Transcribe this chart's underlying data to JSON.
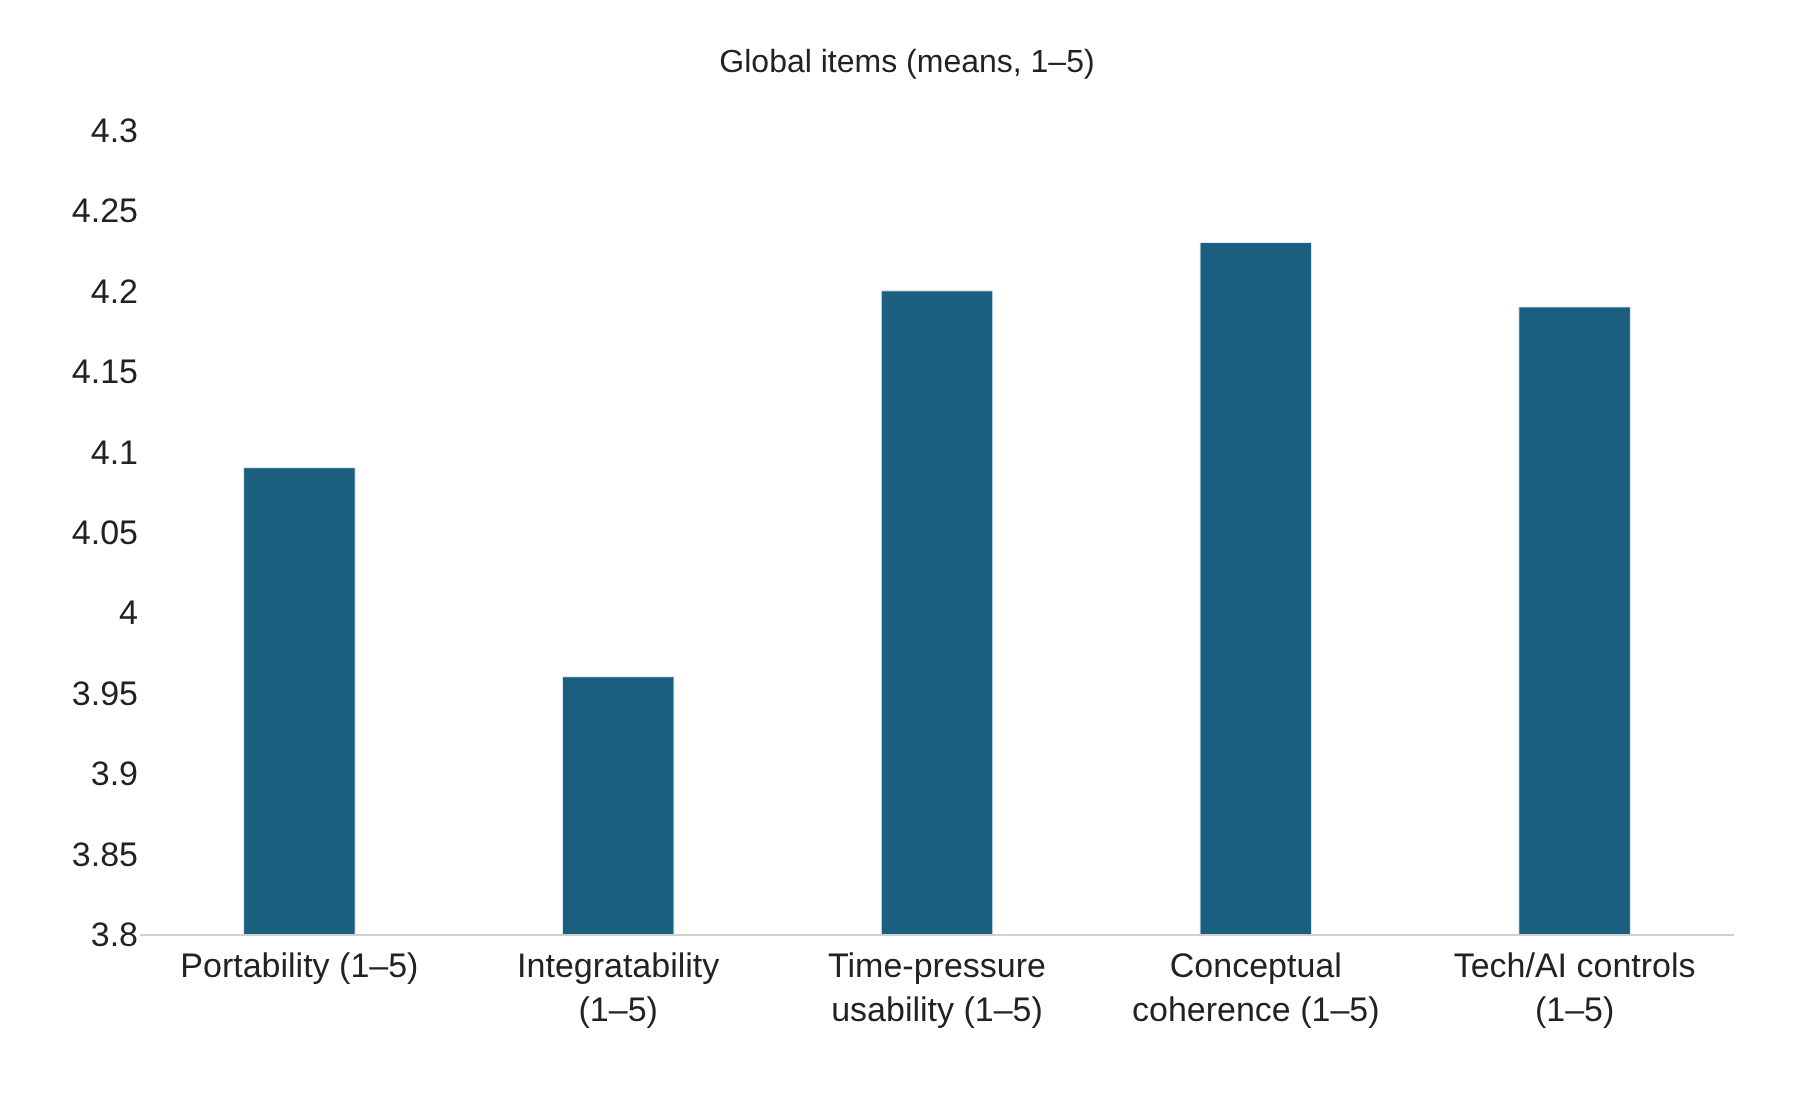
{
  "chart_data": {
    "type": "bar",
    "title": "Global items (means, 1–5)",
    "categories": [
      "Portability (1–5)",
      "Integratability (1–5)",
      "Time-pressure usability (1–5)",
      "Conceptual coherence (1–5)",
      "Tech/AI controls (1–5)"
    ],
    "values": [
      4.09,
      3.96,
      4.2,
      4.23,
      4.19
    ],
    "color": "#1a5e80",
    "ylim": [
      3.8,
      4.3
    ],
    "yticks": [
      3.8,
      3.85,
      3.9,
      3.95,
      4,
      4.05,
      4.1,
      4.15,
      4.2,
      4.25,
      4.3
    ],
    "grid": false,
    "legend": false
  }
}
